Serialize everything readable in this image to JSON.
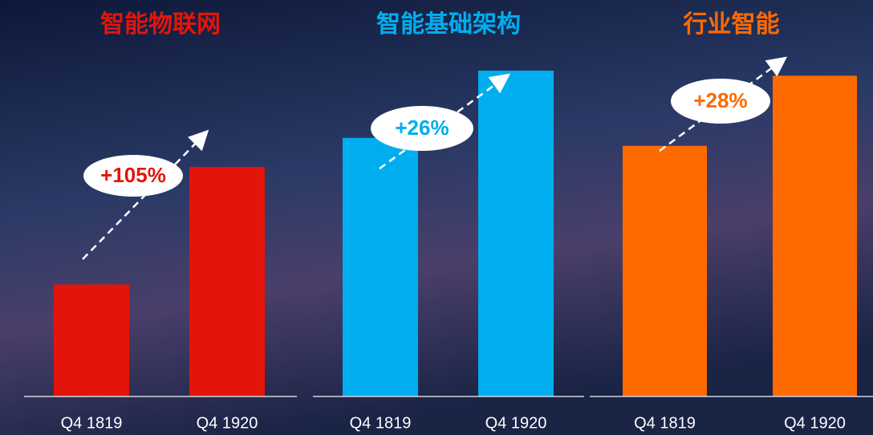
{
  "chart_data": [
    {
      "type": "bar",
      "title": "智能物联网",
      "color": "#e3150a",
      "categories": [
        "Q4 1819",
        "Q4 1920"
      ],
      "values": [
        100,
        205
      ],
      "ylim": [
        0,
        311
      ],
      "annotation": "+105%"
    },
    {
      "type": "bar",
      "title": "智能基础架构",
      "color": "#00aeef",
      "categories": [
        "Q4 1819",
        "Q4 1920"
      ],
      "values": [
        100,
        126
      ],
      "ylim": [
        0,
        134.7
      ],
      "annotation": "+26%"
    },
    {
      "type": "bar",
      "title": "行业智能",
      "color": "#ff6a00",
      "categories": [
        "Q4 1819",
        "Q4 1920"
      ],
      "values": [
        100,
        128
      ],
      "ylim": [
        0,
        139
      ],
      "annotation": "+28%"
    }
  ]
}
